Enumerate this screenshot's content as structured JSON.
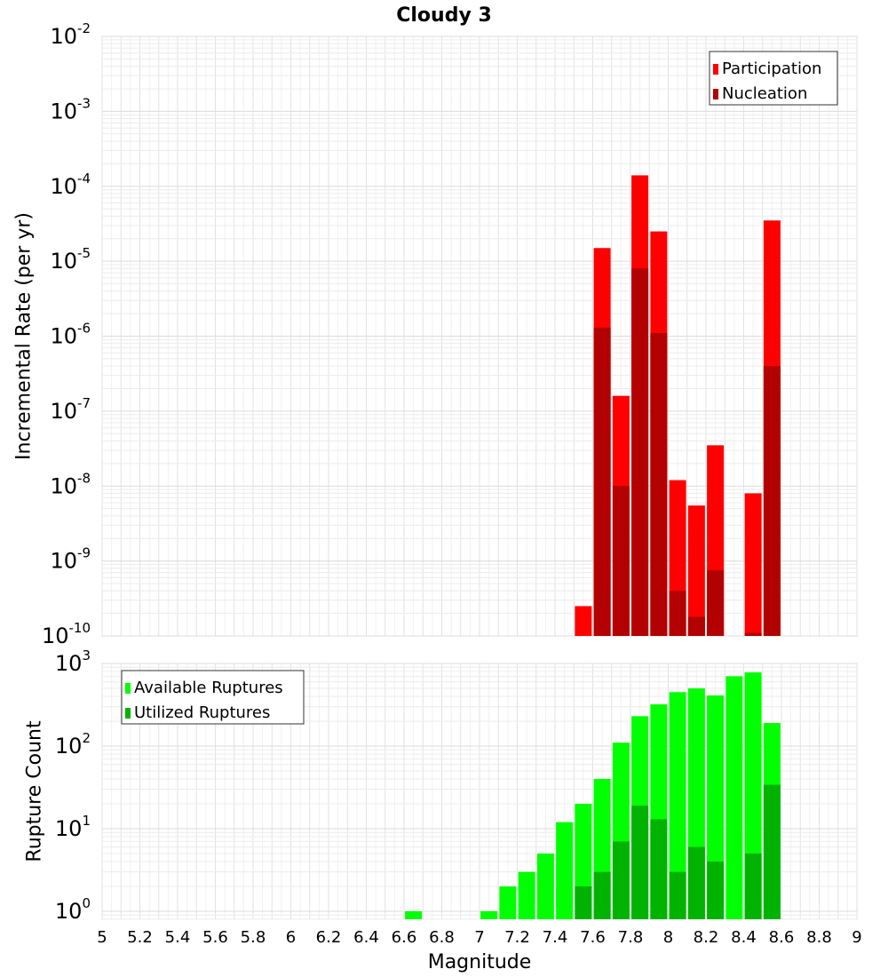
{
  "chart_data": [
    {
      "type": "bar",
      "title": "Cloudy 3",
      "xlabel": "",
      "ylabel": "Incremental Rate (per yr)",
      "yscale": "log",
      "ylim": [
        1e-10,
        0.01
      ],
      "xlim": [
        5,
        9
      ],
      "grid": true,
      "legend_position": "top-right",
      "x": [
        7.55,
        7.65,
        7.75,
        7.85,
        7.95,
        8.05,
        8.15,
        8.25,
        8.45,
        8.55
      ],
      "series": [
        {
          "name": "Participation",
          "color": "#ff0000",
          "values": [
            2.5e-10,
            1.5e-05,
            1.6e-07,
            0.00014,
            2.5e-05,
            1.2e-08,
            5.5e-09,
            3.5e-08,
            8e-09,
            3.5e-05
          ]
        },
        {
          "name": "Nucleation",
          "color": "#b30000",
          "values": [
            null,
            1.3e-06,
            1e-08,
            8e-06,
            1.1e-06,
            4e-10,
            1.8e-10,
            7.5e-10,
            1.1e-10,
            4e-07
          ]
        }
      ]
    },
    {
      "type": "bar",
      "title": "",
      "xlabel": "Magnitude",
      "ylabel": "Rupture Count",
      "yscale": "log",
      "ylim": [
        0.8,
        1000
      ],
      "xlim": [
        5,
        9
      ],
      "grid": true,
      "legend_position": "top-left",
      "x": [
        6.65,
        7.05,
        7.15,
        7.25,
        7.35,
        7.45,
        7.55,
        7.65,
        7.75,
        7.85,
        7.95,
        8.05,
        8.15,
        8.25,
        8.35,
        8.45,
        8.55
      ],
      "series": [
        {
          "name": "Available Ruptures",
          "color": "#00ff00",
          "values": [
            1,
            1,
            2,
            3,
            5,
            12,
            20,
            40,
            110,
            230,
            320,
            450,
            500,
            410,
            700,
            780,
            190
          ]
        },
        {
          "name": "Utilized Ruptures",
          "color": "#00b300",
          "values": [
            null,
            null,
            null,
            null,
            null,
            null,
            2,
            3,
            7,
            19,
            13,
            3,
            6,
            4,
            null,
            5,
            34
          ]
        }
      ],
      "x_ticks": [
        "5",
        "5.2",
        "5.4",
        "5.6",
        "5.8",
        "6",
        "6.2",
        "6.4",
        "6.6",
        "6.8",
        "7",
        "7.2",
        "7.4",
        "7.6",
        "7.8",
        "8",
        "8.2",
        "8.4",
        "8.6",
        "8.8",
        "9"
      ]
    }
  ]
}
